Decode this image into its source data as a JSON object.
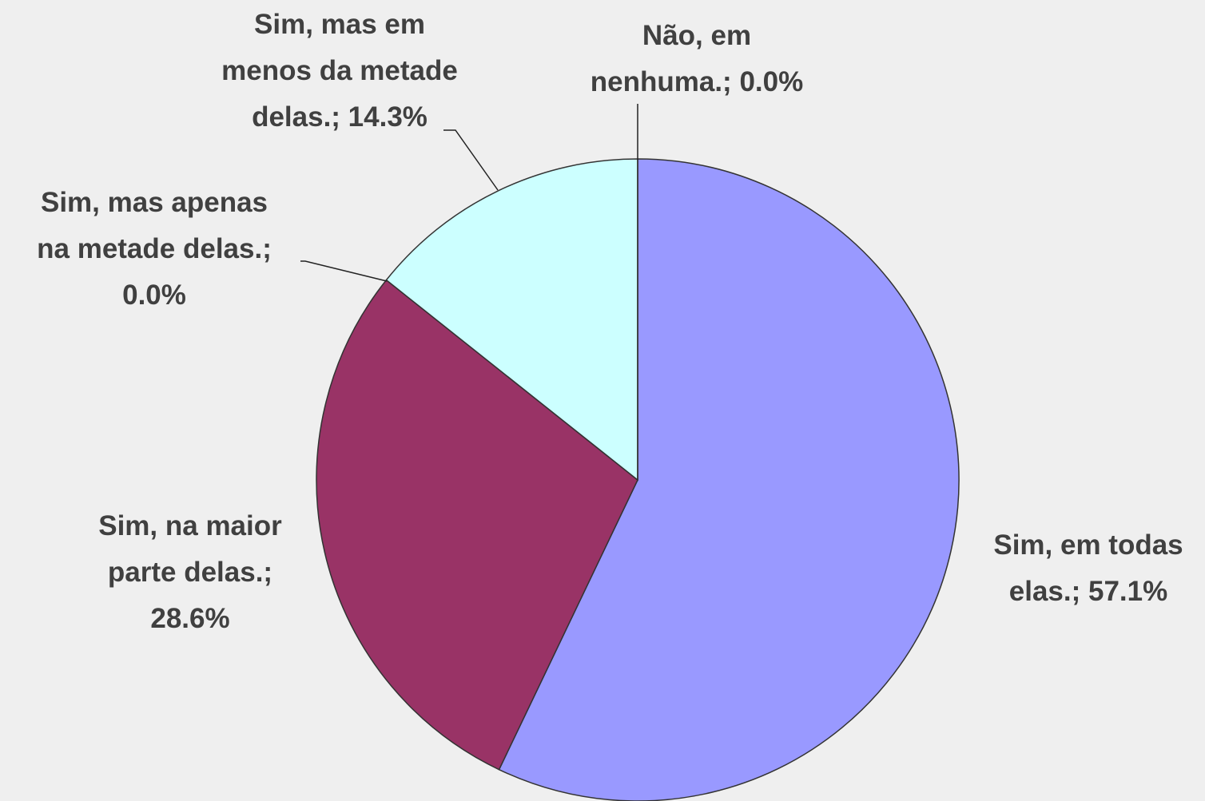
{
  "chart_data": {
    "type": "pie",
    "values": [
      57.1,
      28.6,
      0.0,
      14.3,
      0.0
    ],
    "value_labels": [
      "Sim, em todas elas.; 57.1%",
      "Sim, na maior parte delas.; 28.6%",
      "Sim, mas apenas na metade delas.; 0.0%",
      "Sim, mas em menos da metade delas.; 14.3%",
      "Não, em nenhuma.; 0.0%"
    ],
    "colors": [
      "#9999ff",
      "#993366",
      "#ffffc0",
      "#ccffff",
      "#ffffff"
    ]
  }
}
